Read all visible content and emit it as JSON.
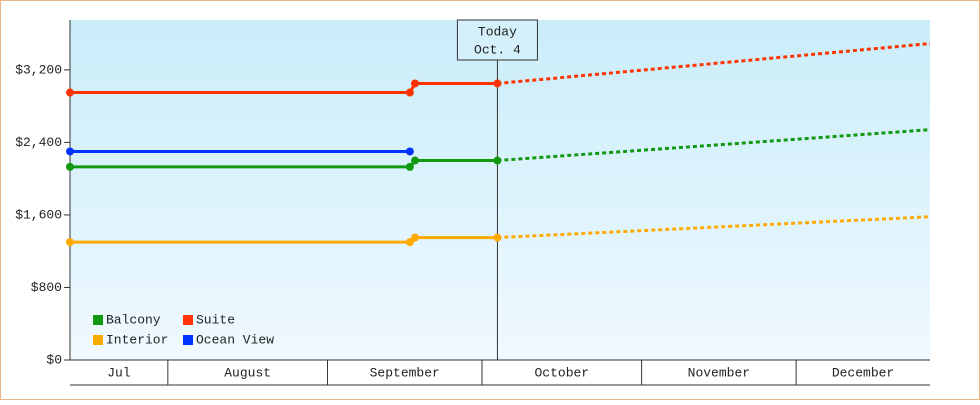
{
  "chart_data": {
    "type": "line",
    "ylim": [
      0,
      3750
    ],
    "yticks": [
      {
        "value": 0,
        "label": "$0"
      },
      {
        "value": 800,
        "label": "$800"
      },
      {
        "value": 1600,
        "label": "$1,600"
      },
      {
        "value": 2400,
        "label": "$2,400"
      },
      {
        "value": 3200,
        "label": "$3,200"
      }
    ],
    "xlim": [
      12,
      179
    ],
    "xticks": [
      31,
      62,
      92,
      123,
      153
    ],
    "categories": [
      "Jul",
      "August",
      "September",
      "October",
      "November",
      "December"
    ],
    "annotation": {
      "x": 95,
      "lines": [
        "Today",
        "Oct. 4"
      ]
    },
    "forecast_from": 95,
    "legend": "bottom-left",
    "series": [
      {
        "name": "Balcony",
        "color": "#119911",
        "x": [
          12,
          78,
          79,
          95,
          179
        ],
        "values": [
          2130,
          2130,
          2200,
          2200,
          2540
        ]
      },
      {
        "name": "Suite",
        "color": "#ff3300",
        "x": [
          12,
          78,
          79,
          95,
          179
        ],
        "values": [
          2950,
          2950,
          3050,
          3050,
          3490
        ]
      },
      {
        "name": "Interior",
        "color": "#ffaa00",
        "x": [
          12,
          78,
          79,
          95,
          179
        ],
        "values": [
          1300,
          1300,
          1350,
          1350,
          1580
        ]
      },
      {
        "name": "Ocean View",
        "color": "#0033ff",
        "x": [
          12,
          78
        ],
        "values": [
          2300,
          2300
        ]
      }
    ]
  }
}
